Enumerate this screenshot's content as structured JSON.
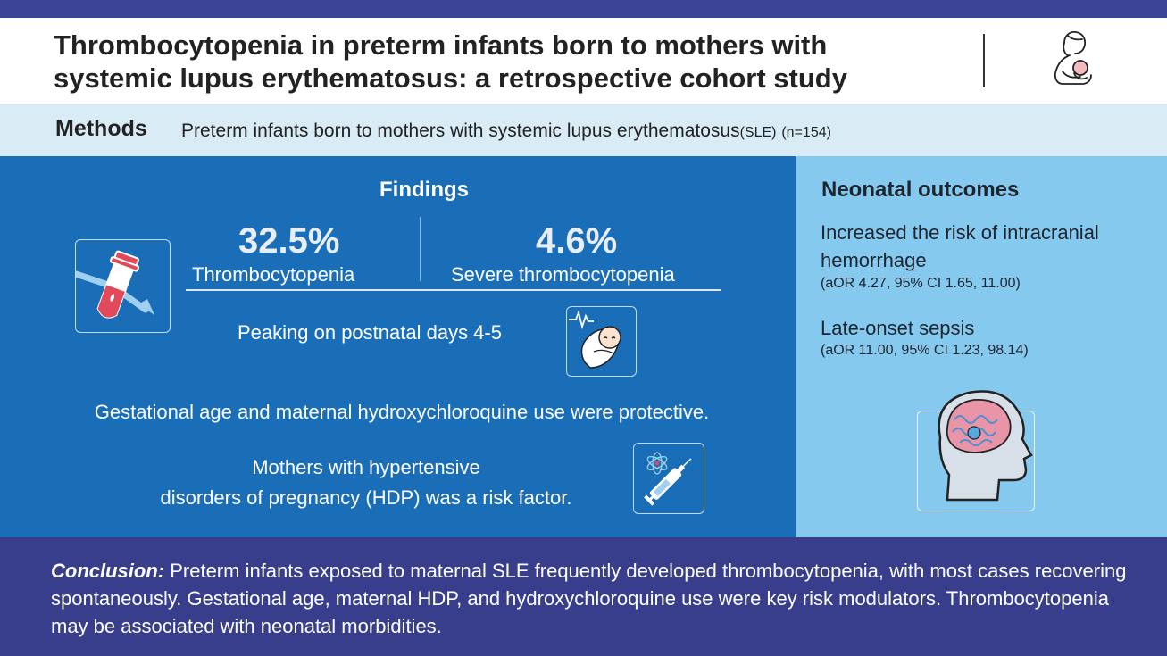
{
  "header": {
    "title_line1": "Thrombocytopenia in preterm infants born to mothers with",
    "title_line2": "systemic lupus erythematosus: a retrospective cohort study",
    "icon": "mother-baby-icon"
  },
  "methods": {
    "heading": "Methods",
    "text": "Preterm infants born to mothers with systemic lupus erythematosus",
    "abbrev": "(SLE)",
    "n": "(n=154)"
  },
  "findings": {
    "title": "Findings",
    "stat1": {
      "value": "32.5%",
      "label": "Thrombocytopenia"
    },
    "stat2": {
      "value": "4.6%",
      "label": "Severe thrombocytopenia"
    },
    "peaking": "Peaking on postnatal days 4-5",
    "protective": "Gestational age and maternal hydroxychloroquine use were protective.",
    "hdp_line1": "Mothers with hypertensive",
    "hdp_line2": "disorders of pregnancy (HDP) was a risk factor.",
    "icons": [
      "blood-tube-icon",
      "newborn-baby-icon",
      "syringe-icon"
    ]
  },
  "outcomes": {
    "title": "Neonatal outcomes",
    "item1": "Increased the risk of intracranial hemorrhage",
    "item1_stats": "(aOR 4.27, 95% CI 1.65, 11.00)",
    "item2": "Late-onset sepsis",
    "item2_stats": "(aOR 11.00, 95% CI 1.23, 98.14)",
    "icon": "brain-head-icon"
  },
  "conclusion": {
    "label": "Conclusion:",
    "text": " Preterm infants exposed to maternal SLE frequently developed thrombocytopenia, with most cases recovering spontaneously. Gestational age, maternal HDP, and hydroxychloroquine use were key risk modulators. Thrombocytopenia may be associated with neonatal morbidities."
  },
  "colors": {
    "top_bar": "#3c4496",
    "methods_bg": "#d9ecf6",
    "findings_bg": "#1a6eb8",
    "outcomes_bg": "#86c9ee",
    "conclusion_bg": "#383e8c"
  }
}
